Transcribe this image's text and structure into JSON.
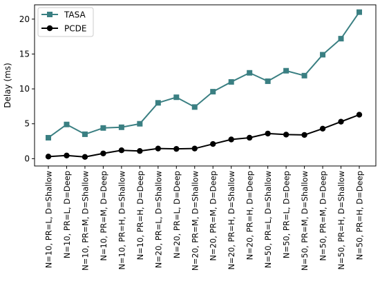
{
  "chart_data": {
    "type": "line",
    "title": "",
    "xlabel": "",
    "ylabel": "Delay (ms)",
    "ylim": [
      -1.05,
      22.05
    ],
    "yticks": [
      0,
      5,
      10,
      15,
      20
    ],
    "grid": false,
    "legend_position": "top-left",
    "categories": [
      "N=10, PR=L, D=Shallow",
      "N=10, PR=L, D=Deep",
      "N=10, PR=M, D=Shallow",
      "N=10, PR=M, D=Deep",
      "N=10, PR=H, D=Shallow",
      "N=10, PR=H, D=Deep",
      "N=20, PR=L, D=Shallow",
      "N=20, PR=L, D=Deep",
      "N=20, PR=M, D=Shallow",
      "N=20, PR=M, D=Deep",
      "N=20, PR=H, D=Shallow",
      "N=20, PR=H, D=Deep",
      "N=50, PR=L, D=Shallow",
      "N=50, PR=L, D=Deep",
      "N=50, PR=M, D=Shallow",
      "N=50, PR=M, D=Deep",
      "N=50, PR=H, D=Shallow",
      "N=50, PR=H, D=Deep"
    ],
    "series": [
      {
        "name": "TASA",
        "color": "#3a7f82",
        "marker": "square",
        "values": [
          3.0,
          4.9,
          3.5,
          4.4,
          4.5,
          5.0,
          8.0,
          8.8,
          7.4,
          9.6,
          11.0,
          12.3,
          11.1,
          12.6,
          11.9,
          14.9,
          17.2,
          21.0
        ]
      },
      {
        "name": "PCDE",
        "color": "#000000",
        "marker": "circle",
        "values": [
          0.3,
          0.45,
          0.25,
          0.75,
          1.2,
          1.1,
          1.45,
          1.4,
          1.45,
          2.1,
          2.75,
          3.0,
          3.6,
          3.45,
          3.4,
          4.3,
          5.3,
          6.3
        ]
      }
    ]
  }
}
